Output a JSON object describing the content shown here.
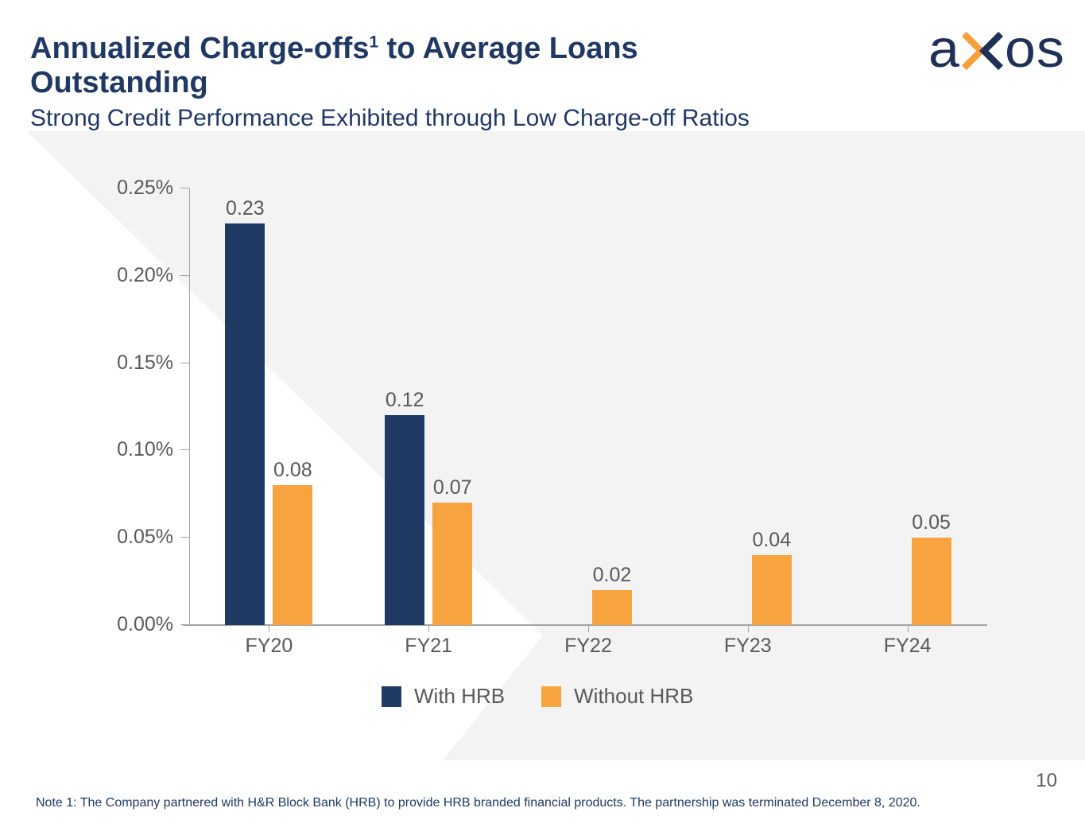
{
  "slide": {
    "title": {
      "pre": "Annualized Charge-offs",
      "sup": "1",
      "post": " to Average Loans Outstanding"
    },
    "subtitle": "Strong Credit Performance Exhibited through Low Charge-off Ratios",
    "logo": {
      "left": "a",
      "right": "os"
    },
    "page_number": "10",
    "note": "Note 1: The Company partnered with H&R Block Bank (HRB) to provide HRB branded financial products. The partnership was terminated December 8, 2020."
  },
  "colors": {
    "navy": "#1F3B63",
    "orange": "#F7A440",
    "title_navy": "#1F3864",
    "label_gray": "#595959",
    "axis_gray": "#A3A3A3",
    "bg_gray": "#F3F3F4",
    "logo_navy": "#203158",
    "logo_orange": "#F5A03C"
  },
  "chart_data": {
    "type": "bar",
    "categories": [
      "FY20",
      "FY21",
      "FY22",
      "FY23",
      "FY24"
    ],
    "series": [
      {
        "name": "With HRB",
        "color_key": "navy",
        "values": [
          0.23,
          0.12,
          null,
          null,
          null
        ]
      },
      {
        "name": "Without HRB",
        "color_key": "orange",
        "values": [
          0.08,
          0.07,
          0.02,
          0.04,
          0.05
        ]
      }
    ],
    "y_ticks": [
      "0.00%",
      "0.05%",
      "0.10%",
      "0.15%",
      "0.20%",
      "0.25%"
    ],
    "ylim": [
      0,
      0.25
    ],
    "value_label_decimals": 2,
    "grid": "off",
    "legend_position": "bottom"
  }
}
